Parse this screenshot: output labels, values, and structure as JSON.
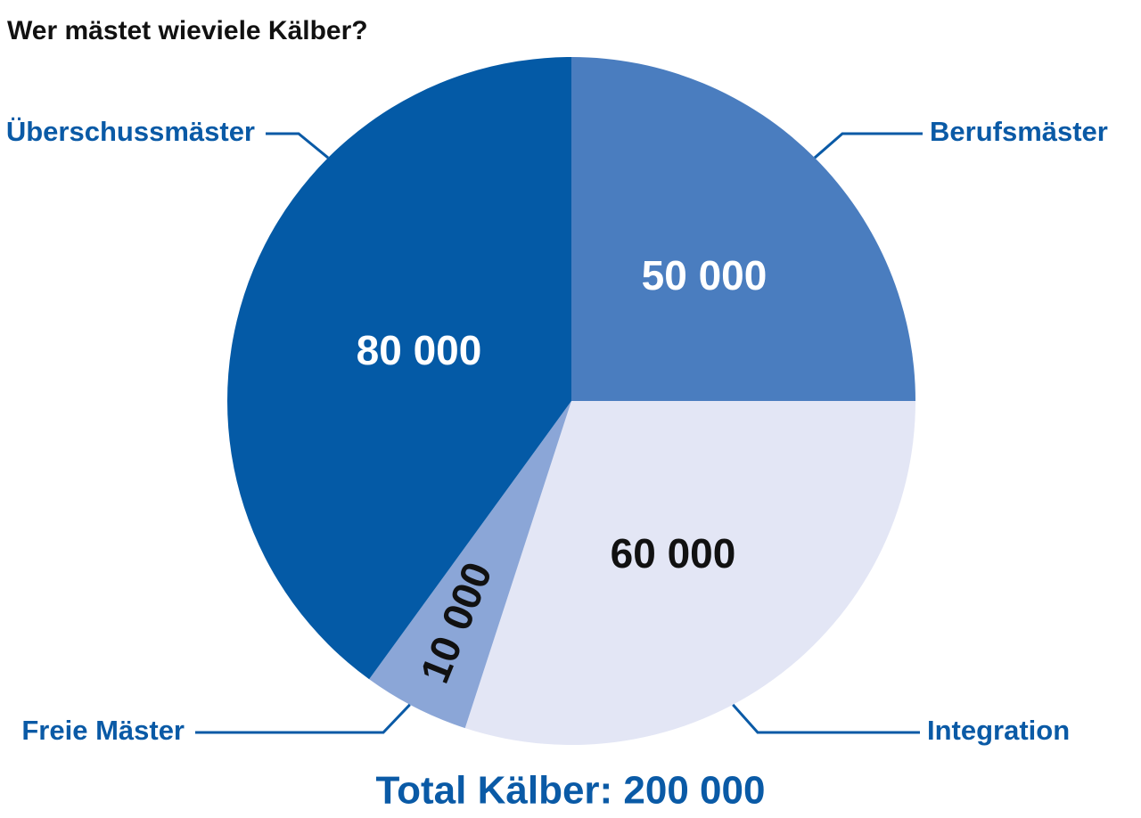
{
  "chart_data": {
    "type": "pie",
    "title": "Wer mästet wieviele Kälber?",
    "categories": [
      "Berufsmäster",
      "Integration",
      "Freie Mäster",
      "Überschussmäster"
    ],
    "values": [
      50000,
      60000,
      10000,
      80000
    ],
    "value_labels": [
      "50 000",
      "60 000",
      "10 000",
      "80 000"
    ],
    "colors": [
      "#4a7dbf",
      "#e3e6f5",
      "#8ba6d7",
      "#045aa6"
    ],
    "annotation": "Total Kälber: 200 000"
  }
}
